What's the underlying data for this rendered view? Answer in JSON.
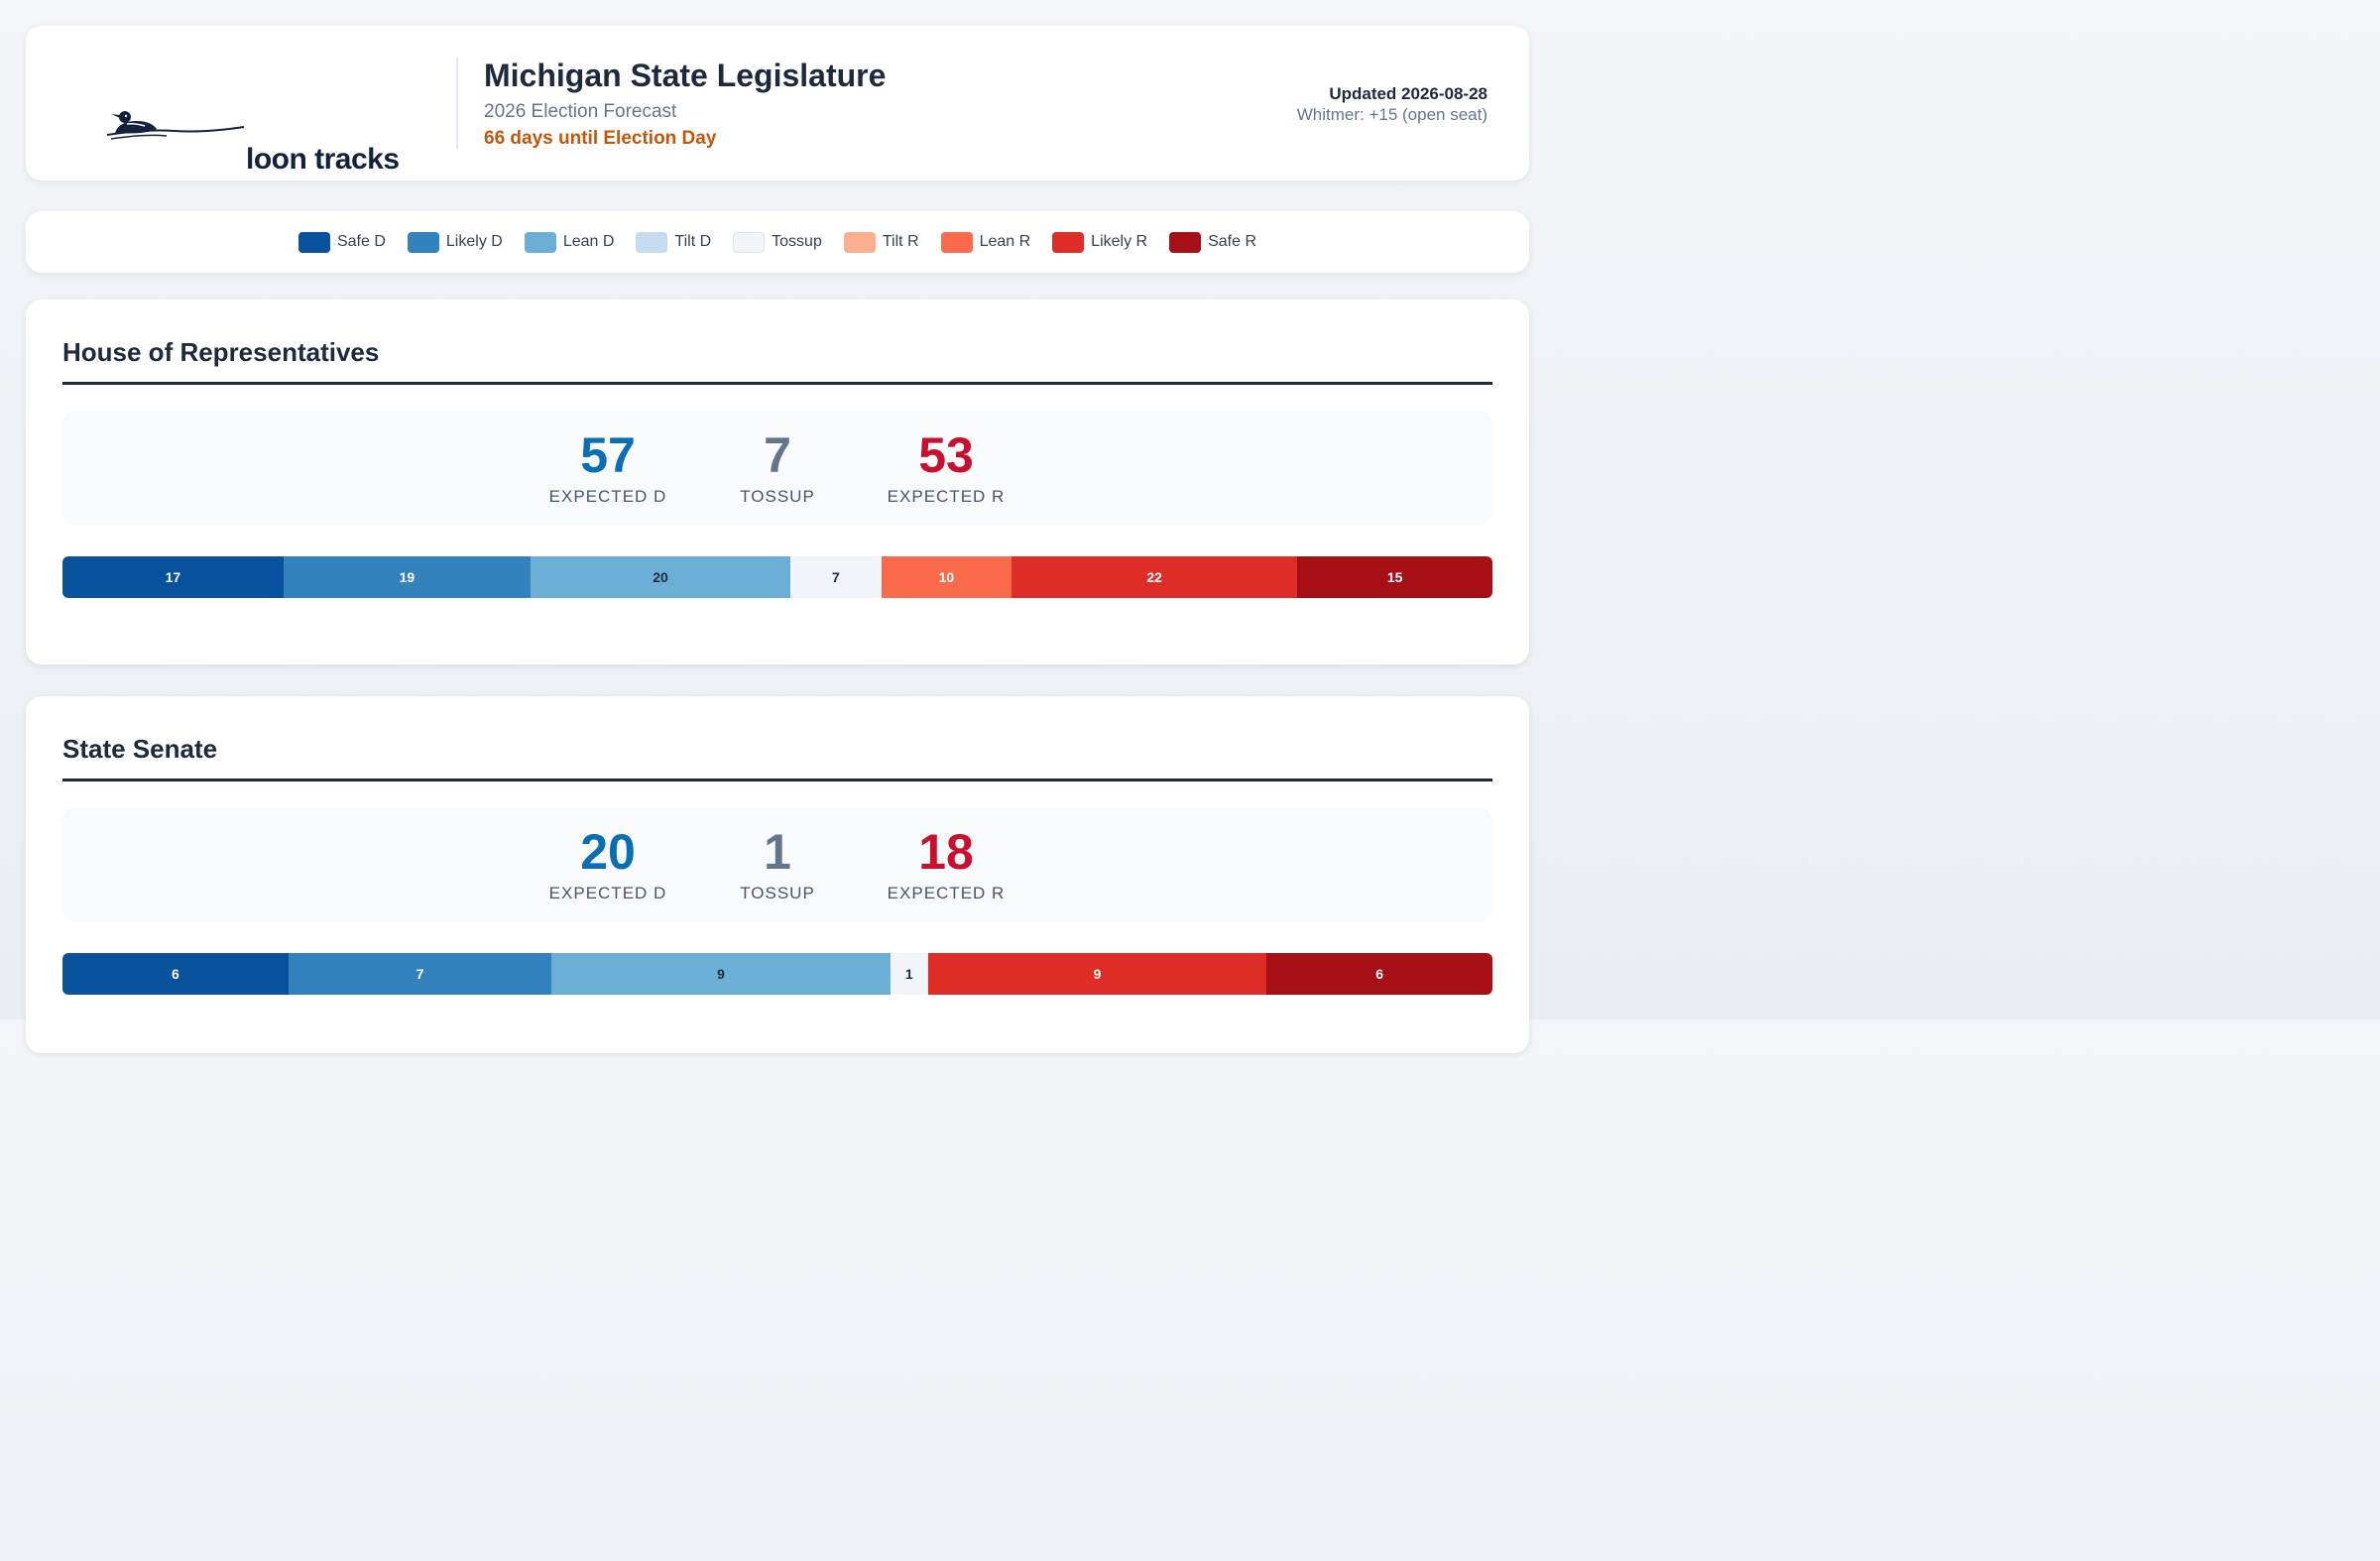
{
  "header": {
    "logo_text": "loon tracks",
    "title": "Michigan State Legislature",
    "subtitle": "2026 Election Forecast",
    "countdown": "66 days until Election Day",
    "updated": "Updated 2026-08-28",
    "note": "Whitmer: +15 (open seat)"
  },
  "legend": [
    {
      "label": "Safe D",
      "color": "#08519c"
    },
    {
      "label": "Likely D",
      "color": "#3182bd"
    },
    {
      "label": "Lean D",
      "color": "#6baed6"
    },
    {
      "label": "Tilt D",
      "color": "#c6dbef"
    },
    {
      "label": "Tossup",
      "color": "#f1f5f9"
    },
    {
      "label": "Tilt R",
      "color": "#fcae91"
    },
    {
      "label": "Lean R",
      "color": "#fb6a4a"
    },
    {
      "label": "Likely R",
      "color": "#de2d26"
    },
    {
      "label": "Safe R",
      "color": "#a50f15"
    }
  ],
  "house": {
    "title": "House of Representatives",
    "expected_d": "57",
    "expected_d_label": "EXPECTED D",
    "tossup": "7",
    "tossup_label": "TOSSUP",
    "expected_r": "53",
    "expected_r_label": "EXPECTED R",
    "segments": [
      {
        "rating": "Safe D",
        "seats": 17
      },
      {
        "rating": "Likely D",
        "seats": 19
      },
      {
        "rating": "Lean D",
        "seats": 20
      },
      {
        "rating": "Tossup",
        "seats": 7
      },
      {
        "rating": "Lean R",
        "seats": 10
      },
      {
        "rating": "Likely R",
        "seats": 22
      },
      {
        "rating": "Safe R",
        "seats": 15
      }
    ]
  },
  "senate": {
    "title": "State Senate",
    "expected_d": "20",
    "expected_d_label": "EXPECTED D",
    "tossup": "1",
    "tossup_label": "TOSSUP",
    "expected_r": "18",
    "expected_r_label": "EXPECTED R",
    "segments": [
      {
        "rating": "Safe D",
        "seats": 6
      },
      {
        "rating": "Likely D",
        "seats": 7
      },
      {
        "rating": "Lean D",
        "seats": 9
      },
      {
        "rating": "Tossup",
        "seats": 1
      },
      {
        "rating": "Likely R",
        "seats": 9
      },
      {
        "rating": "Safe R",
        "seats": 6
      }
    ]
  },
  "segment_text_colors": {
    "Safe D": "#ffffff",
    "Likely D": "#ffffff",
    "Lean D": "#1e293b",
    "Tilt D": "#1e293b",
    "Tossup": "#1e293b",
    "Tilt R": "#1e293b",
    "Lean R": "#ffffff",
    "Likely R": "#ffffff",
    "Safe R": "#ffffff"
  }
}
